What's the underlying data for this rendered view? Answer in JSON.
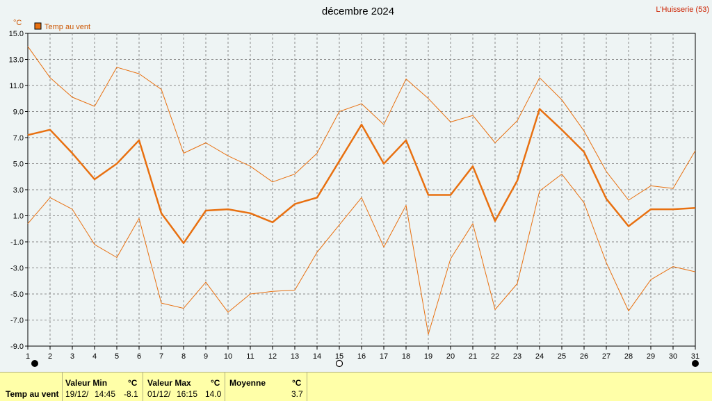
{
  "chart_data": {
    "type": "line",
    "title": "décembre 2024",
    "location": "L'Huisserie (53)",
    "ylabel_unit": "°C",
    "legend": [
      "Temp au vent"
    ],
    "legend_position": "top-left",
    "grid": true,
    "ylim": [
      -9.0,
      15.0
    ],
    "yticks": [
      "15.0",
      "13.0",
      "11.0",
      "9.0",
      "7.0",
      "5.0",
      "3.0",
      "1.0",
      "-1.0",
      "-3.0",
      "-5.0",
      "-7.0",
      "-9.0"
    ],
    "x": [
      1,
      2,
      3,
      4,
      5,
      6,
      7,
      8,
      9,
      10,
      11,
      12,
      13,
      14,
      15,
      16,
      17,
      18,
      19,
      20,
      21,
      22,
      23,
      24,
      25,
      26,
      27,
      28,
      29,
      30,
      31
    ],
    "series": [
      {
        "name": "Temp au vent",
        "role": "mean",
        "color": "#e87010",
        "values": [
          7.2,
          7.6,
          5.8,
          3.8,
          5.0,
          6.8,
          1.2,
          -1.1,
          1.4,
          1.5,
          1.2,
          0.5,
          1.9,
          2.4,
          5.2,
          8.0,
          5.0,
          6.8,
          2.6,
          2.6,
          4.8,
          0.6,
          3.7,
          9.2,
          7.6,
          5.9,
          2.3,
          0.2,
          1.5,
          1.5,
          1.6
        ]
      },
      {
        "role": "max",
        "color": "#e87010",
        "values": [
          14.0,
          11.6,
          10.1,
          9.4,
          12.4,
          11.9,
          10.7,
          5.8,
          6.6,
          5.6,
          4.8,
          3.6,
          4.2,
          5.8,
          9.0,
          9.6,
          8.0,
          11.5,
          10.0,
          8.2,
          8.7,
          6.6,
          8.3,
          11.6,
          9.9,
          7.5,
          4.4,
          2.2,
          3.3,
          3.1,
          6.0
        ]
      },
      {
        "role": "min",
        "color": "#e87010",
        "values": [
          0.4,
          2.4,
          1.5,
          -1.2,
          -2.2,
          0.8,
          -5.7,
          -6.1,
          -4.1,
          -6.4,
          -5.0,
          -4.8,
          -4.7,
          -1.8,
          0.3,
          2.4,
          -1.4,
          1.8,
          -8.1,
          -2.3,
          0.4,
          -6.2,
          -4.2,
          2.9,
          4.2,
          2.0,
          -2.6,
          -6.3,
          -3.9,
          -2.9,
          -3.3
        ]
      }
    ],
    "moon_phases": [
      {
        "day": 1,
        "phase": "new"
      },
      {
        "day": 15,
        "phase": "full"
      },
      {
        "day": 31,
        "phase": "new"
      }
    ]
  },
  "stats": {
    "row_label": "Temp au vent",
    "min": {
      "label": "Valeur Min",
      "unit": "°C",
      "date": "19/12/",
      "time": "14:45",
      "value": "-8.1"
    },
    "max": {
      "label": "Valeur Max",
      "unit": "°C",
      "date": "01/12/",
      "time": "16:15",
      "value": "14.0"
    },
    "mean": {
      "label": "Moyenne",
      "unit": "°C",
      "value": "3.7"
    }
  }
}
